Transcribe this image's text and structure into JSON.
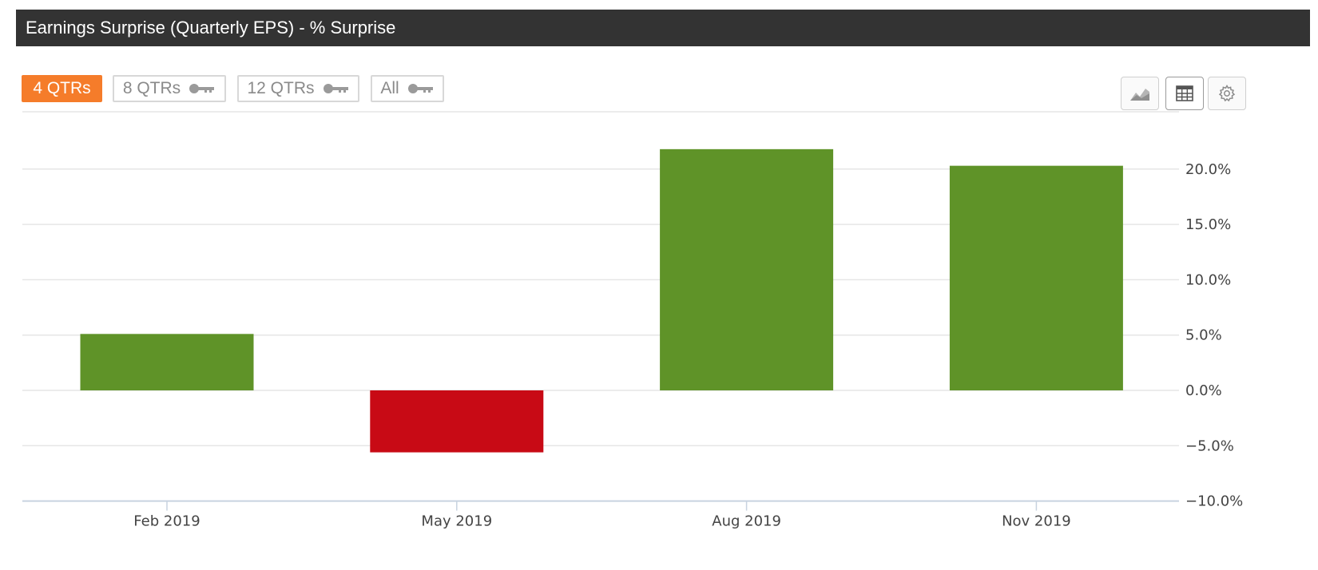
{
  "header": {
    "title": "Earnings Surprise (Quarterly EPS) - % Surprise"
  },
  "range_buttons": [
    {
      "label": "4 QTRs",
      "active": true,
      "locked": false
    },
    {
      "label": "8 QTRs",
      "active": false,
      "locked": true
    },
    {
      "label": "12 QTRs",
      "active": false,
      "locked": true
    },
    {
      "label": "All",
      "active": false,
      "locked": true
    }
  ],
  "tools": [
    {
      "icon": "area-chart-icon"
    },
    {
      "icon": "table-icon"
    },
    {
      "icon": "gear-icon"
    }
  ],
  "colors": {
    "positive": "#5f9328",
    "negative": "#c80a15",
    "active_button": "#f57c2a",
    "header_bg": "#333333"
  },
  "chart_data": {
    "type": "bar",
    "title": "Earnings Surprise (Quarterly EPS) - % Surprise",
    "categories": [
      "Feb 2019",
      "May 2019",
      "Aug 2019",
      "Nov 2019"
    ],
    "values": [
      5.1,
      -5.6,
      21.8,
      20.3
    ],
    "ylim": [
      -10,
      25
    ],
    "yticks": [
      -10,
      -5,
      0,
      5,
      10,
      15,
      20
    ],
    "ytick_labels": [
      "−10.0%",
      "−5.0%",
      "0.0%",
      "5.0%",
      "10.0%",
      "15.0%",
      "20.0%"
    ],
    "y_axis_side": "right",
    "grid": true,
    "legend": "none"
  }
}
